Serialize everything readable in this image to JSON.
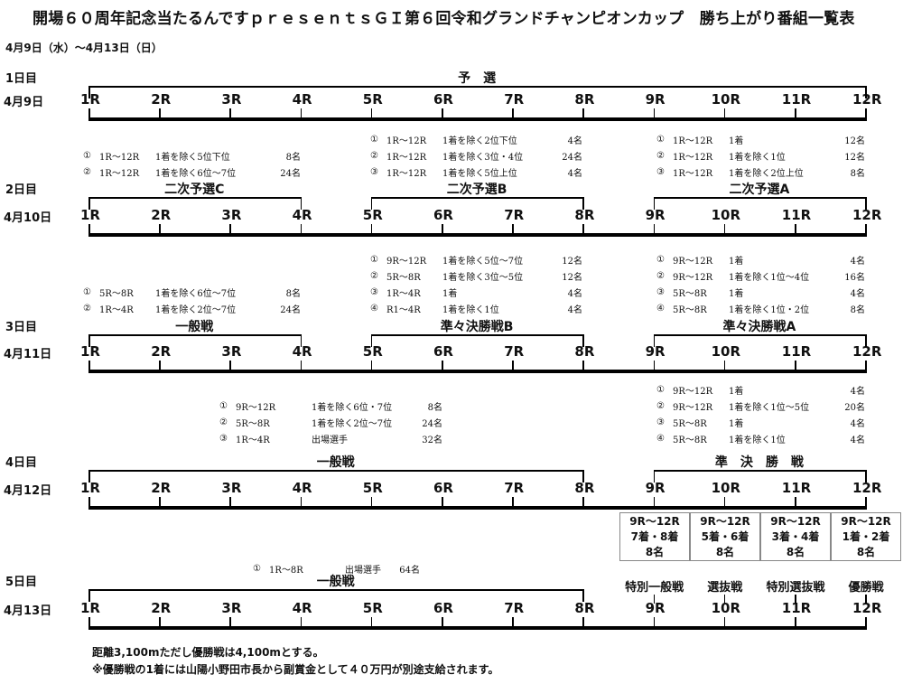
{
  "title": "開場６０周年記念当たるんですｐｒｅｓｅｎｔｓＧＩ第６回令和グランドチャンピオンカップ　勝ち上がり番組一覧表",
  "period": "4月9日（水）～4月13日（日）",
  "races": [
    "1R",
    "2R",
    "3R",
    "4R",
    "5R",
    "6R",
    "7R",
    "8R",
    "9R",
    "10R",
    "11R",
    "12R"
  ],
  "days": [
    {
      "label": "1日目",
      "date": "4月9日",
      "groups": [
        {
          "title": "予　選",
          "from": 1,
          "to": 12
        }
      ],
      "notes": []
    },
    {
      "label": "2日目",
      "date": "4月10日",
      "groups": [
        {
          "title": "二次予選C",
          "from": 1,
          "to": 4
        },
        {
          "title": "二次予選B",
          "from": 5,
          "to": 8
        },
        {
          "title": "二次予選A",
          "from": 9,
          "to": 12
        }
      ],
      "notes": [
        {
          "items": [
            {
              "num": "①",
              "range": "1R～12R",
              "cond": "1着を除く5位下位",
              "count": "8名"
            },
            {
              "num": "②",
              "range": "1R～12R",
              "cond": "1着を除く6位～7位",
              "count": "24名"
            }
          ]
        },
        {
          "items": [
            {
              "num": "①",
              "range": "1R～12R",
              "cond": "1着を除く2位下位",
              "count": "4名"
            },
            {
              "num": "②",
              "range": "1R～12R",
              "cond": "1着を除く3位・4位",
              "count": "24名"
            },
            {
              "num": "③",
              "range": "1R～12R",
              "cond": "1着を除く5位上位",
              "count": "4名"
            }
          ]
        },
        {
          "items": [
            {
              "num": "①",
              "range": "1R～12R",
              "cond": "1着",
              "count": "12名"
            },
            {
              "num": "②",
              "range": "1R～12R",
              "cond": "1着を除く1位",
              "count": "12名"
            },
            {
              "num": "③",
              "range": "1R～12R",
              "cond": "1着を除く2位上位",
              "count": "8名"
            }
          ]
        }
      ]
    },
    {
      "label": "3日目",
      "date": "4月11日",
      "groups": [
        {
          "title": "一般戦",
          "from": 1,
          "to": 4
        },
        {
          "title": "準々決勝戦B",
          "from": 5,
          "to": 8
        },
        {
          "title": "準々決勝戦A",
          "from": 9,
          "to": 12
        }
      ],
      "notes": [
        {
          "items": [
            {
              "num": "①",
              "range": "5R～8R",
              "cond": "1着を除く6位～7位",
              "count": "8名"
            },
            {
              "num": "②",
              "range": "1R～4R",
              "cond": "1着を除く2位～7位",
              "count": "24名"
            }
          ]
        },
        {
          "items": [
            {
              "num": "①",
              "range": "9R～12R",
              "cond": "1着を除く5位～7位",
              "count": "12名"
            },
            {
              "num": "②",
              "range": "5R～8R",
              "cond": "1着を除く3位～5位",
              "count": "12名"
            },
            {
              "num": "③",
              "range": "1R～4R",
              "cond": "1着",
              "count": "4名"
            },
            {
              "num": "④",
              "range": "R1～4R",
              "cond": "1着を除く1位",
              "count": "4名"
            }
          ]
        },
        {
          "items": [
            {
              "num": "①",
              "range": "9R～12R",
              "cond": "1着",
              "count": "4名"
            },
            {
              "num": "②",
              "range": "9R～12R",
              "cond": "1着を除く1位～4位",
              "count": "16名"
            },
            {
              "num": "③",
              "range": "5R～8R",
              "cond": "1着",
              "count": "4名"
            },
            {
              "num": "④",
              "range": "5R～8R",
              "cond": "1着を除く1位・2位",
              "count": "8名"
            }
          ]
        }
      ]
    },
    {
      "label": "4日目",
      "date": "4月12日",
      "groups": [
        {
          "title": "一般戦",
          "from": 1,
          "to": 8
        },
        {
          "title": "準　決　勝　戦",
          "from": 9,
          "to": 12
        }
      ],
      "notes": [
        {
          "items": [
            {
              "num": "①",
              "range": "9R～12R",
              "cond": "1着を除く6位・7位",
              "count": "8名"
            },
            {
              "num": "②",
              "range": "5R～8R",
              "cond": "1着を除く2位～7位",
              "count": "24名"
            },
            {
              "num": "③",
              "range": "1R～4R",
              "cond": "出場選手",
              "count": "32名"
            }
          ]
        },
        {
          "items": [
            {
              "num": "①",
              "range": "9R～12R",
              "cond": "1着",
              "count": "4名"
            },
            {
              "num": "②",
              "range": "9R～12R",
              "cond": "1着を除く1位～5位",
              "count": "20名"
            },
            {
              "num": "③",
              "range": "5R～8R",
              "cond": "1着",
              "count": "4名"
            },
            {
              "num": "④",
              "range": "5R～8R",
              "cond": "1着を除く1位",
              "count": "4名"
            }
          ]
        }
      ]
    },
    {
      "label": "5日目",
      "date": "4月13日",
      "groups": [
        {
          "title": "一般戦",
          "from": 1,
          "to": 8
        }
      ],
      "notes": [
        {
          "items": [
            {
              "num": "①",
              "range": "1R～8R",
              "cond": "出場選手",
              "count": "64名"
            }
          ]
        }
      ],
      "specials": [
        {
          "race": 9,
          "title": "特別一般戦"
        },
        {
          "race": 10,
          "title": "選抜戦"
        },
        {
          "race": 11,
          "title": "特別選抜戦"
        },
        {
          "race": 12,
          "title": "優勝戦"
        }
      ],
      "boxes": [
        {
          "range": "9R～12R",
          "rank": "7着・8着",
          "count": "8名"
        },
        {
          "range": "9R～12R",
          "rank": "5着・6着",
          "count": "8名"
        },
        {
          "range": "9R～12R",
          "rank": "3着・4着",
          "count": "8名"
        },
        {
          "range": "9R～12R",
          "rank": "1着・2着",
          "count": "8名"
        }
      ]
    }
  ],
  "footnotes": [
    "距離3,100mただし優勝戦は4,100mとする。",
    "※優勝戦の1着には山陽小野田市長から副賞金として４０万円が別途支給されます。"
  ]
}
